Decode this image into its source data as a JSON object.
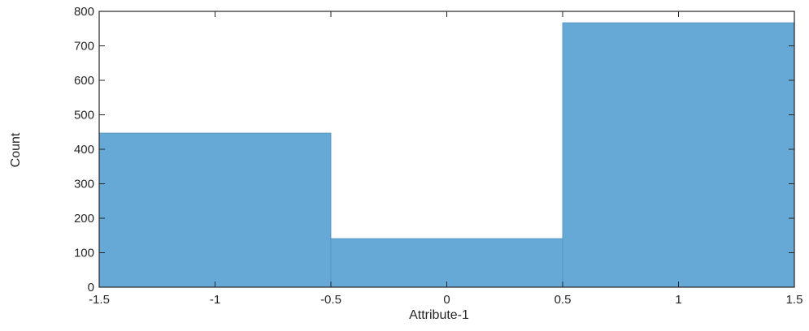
{
  "chart_data": {
    "type": "histogram",
    "title": "",
    "xlabel": "Attribute-1",
    "ylabel": "Count",
    "bins": [
      {
        "x0": -1.5,
        "x1": -0.5,
        "value": 447
      },
      {
        "x0": -0.5,
        "x1": 0.5,
        "value": 141
      },
      {
        "x0": 0.5,
        "x1": 1.5,
        "value": 767
      }
    ],
    "xlim": [
      -1.5,
      1.5
    ],
    "ylim": [
      0,
      800
    ],
    "xticks": [
      -1.5,
      -1,
      -0.5,
      0,
      0.5,
      1,
      1.5
    ],
    "xtick_labels": [
      "-1.5",
      "-1",
      "-0.5",
      "0",
      "0.5",
      "1",
      "1.5"
    ],
    "yticks": [
      0,
      100,
      200,
      300,
      400,
      500,
      600,
      700,
      800
    ],
    "ytick_labels": [
      "0",
      "100",
      "200",
      "300",
      "400",
      "500",
      "600",
      "700",
      "800"
    ],
    "grid": false,
    "legend": "none",
    "colors": {
      "bar_fill": "#66a9d6",
      "bar_edge": "#5592bd",
      "axis": "#262626"
    }
  }
}
